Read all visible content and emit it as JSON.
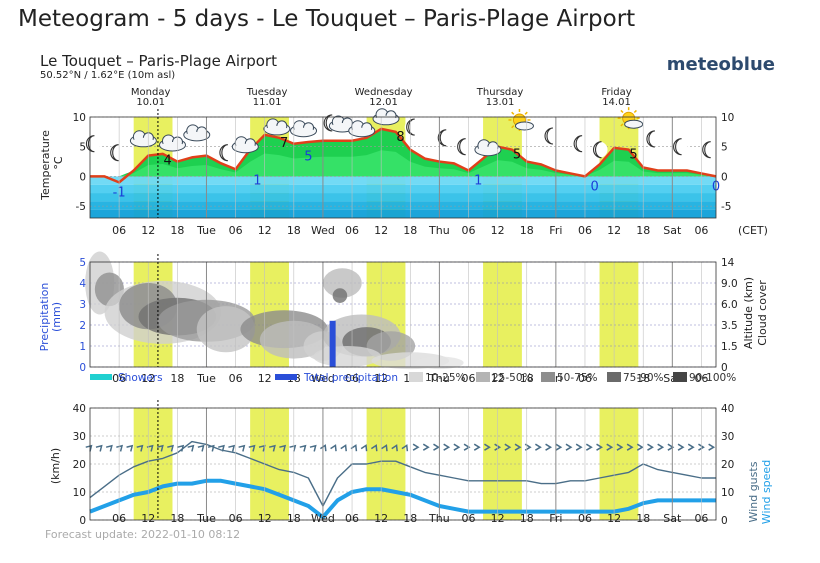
{
  "page": {
    "title": "Meteogram - 5 days - Le Touquet – Paris-Plage Airport"
  },
  "header": {
    "location": "Le Touquet – Paris-Plage Airport",
    "coords": "50.52°N / 1.62°E (10m asl)",
    "brand": "meteoblue",
    "timezone": "(CET)",
    "days": [
      {
        "name": "Monday",
        "date": "10.01"
      },
      {
        "name": "Tuesday",
        "date": "11.01"
      },
      {
        "name": "Wednesday",
        "date": "12.01"
      },
      {
        "name": "Thursday",
        "date": "13.01"
      },
      {
        "name": "Friday",
        "date": "14.01"
      }
    ]
  },
  "x_axis": {
    "tick_labels": [
      "06",
      "12",
      "18",
      "Tue",
      "06",
      "12",
      "18",
      "Wed",
      "06",
      "12",
      "18",
      "Thu",
      "06",
      "12",
      "18",
      "Fri",
      "06",
      "12",
      "18",
      "Sat",
      "06"
    ]
  },
  "footer": {
    "forecast_update": "Forecast update: 2022-01-10 08:12"
  },
  "colors": {
    "daylight": "#e8f060",
    "temperature_line": "#e0401a",
    "warm_fill": "#1ed050",
    "cold_fill": "#30c0e8",
    "precip_bar": "#2a4ed8",
    "showers": "#20d0d0",
    "gusts": "#4a6e88",
    "wind_speed": "#22a0e8",
    "now_line": "#000000"
  },
  "chart_data": [
    {
      "type": "area",
      "title": "",
      "ylabel": "Temperature °C",
      "ylim": [
        -5,
        10
      ],
      "yticks": [
        "10",
        "5",
        "0",
        "-5"
      ],
      "x_unit": "hours since Monday 00:00 (CET)",
      "x": [
        0,
        3,
        6,
        9,
        12,
        15,
        18,
        21,
        24,
        27,
        30,
        33,
        36,
        39,
        42,
        45,
        48,
        51,
        54,
        57,
        60,
        63,
        66,
        69,
        72,
        75,
        78,
        81,
        84,
        87,
        90,
        93,
        96,
        99,
        102,
        105,
        108,
        111,
        114,
        117,
        120,
        123,
        126,
        129
      ],
      "values": [
        0,
        0,
        -1,
        1,
        3.5,
        3.8,
        2.5,
        3.2,
        3.5,
        2.2,
        1.2,
        4.5,
        7,
        6.5,
        5.5,
        5.8,
        6,
        6,
        6,
        6.5,
        8,
        7.5,
        4.5,
        3,
        2.5,
        2.2,
        1,
        3,
        5,
        4.5,
        2.5,
        2,
        1,
        0.5,
        0,
        2,
        4.8,
        4.5,
        1.5,
        1,
        1,
        1,
        0.5,
        0
      ],
      "labels": [
        {
          "text": "-1",
          "x": 6,
          "y": -1,
          "color": "blue"
        },
        {
          "text": "4",
          "x": 16,
          "y": 4,
          "color": "black"
        },
        {
          "text": "1",
          "x": 34.5,
          "y": 1,
          "color": "blue"
        },
        {
          "text": "7",
          "x": 40,
          "y": 7,
          "color": "black"
        },
        {
          "text": "5",
          "x": 45,
          "y": 5,
          "color": "blue"
        },
        {
          "text": "8",
          "x": 64,
          "y": 8,
          "color": "black"
        },
        {
          "text": "1",
          "x": 80,
          "y": 1,
          "color": "blue"
        },
        {
          "text": "5",
          "x": 88,
          "y": 5,
          "color": "black"
        },
        {
          "text": "0",
          "x": 104,
          "y": 0,
          "color": "blue"
        },
        {
          "text": "5",
          "x": 112,
          "y": 5,
          "color": "black"
        },
        {
          "text": "0",
          "x": 129,
          "y": 0,
          "color": "blue"
        }
      ]
    },
    {
      "type": "bar",
      "title": "",
      "ylabel": "Precipitation (mm)",
      "ylabel_right": "Altitude (km) Cloud cover",
      "ylim": [
        0,
        5
      ],
      "yticks": [
        "5",
        "4",
        "3",
        "2",
        "1",
        "0"
      ],
      "yticks_right": [
        "14",
        "9.0",
        "6.0",
        "3.5",
        "1.5",
        "0"
      ],
      "legend": [
        "Showers",
        "Total precipitation",
        "10-25%",
        "25-50%",
        "50-75%",
        "75-90%",
        "90-100%"
      ],
      "x_unit": "hours since Monday 00:00 (CET)",
      "series": [
        {
          "name": "Total precipitation",
          "x": [
            50
          ],
          "values": [
            2.2
          ]
        }
      ]
    },
    {
      "type": "line",
      "title": "",
      "ylabel": "(km/h)",
      "ylabel_right": "Wind gusts Wind speed",
      "ylim": [
        0,
        40
      ],
      "yticks": [
        "40",
        "30",
        "20",
        "10",
        "0"
      ],
      "x_unit": "hours since Monday 00:00 (CET)",
      "x": [
        0,
        3,
        6,
        9,
        12,
        15,
        18,
        21,
        24,
        27,
        30,
        33,
        36,
        39,
        42,
        45,
        48,
        51,
        54,
        57,
        60,
        63,
        66,
        69,
        72,
        75,
        78,
        81,
        84,
        87,
        90,
        93,
        96,
        99,
        102,
        105,
        108,
        111,
        114,
        117,
        120,
        123,
        126,
        129
      ],
      "series": [
        {
          "name": "Wind gusts",
          "values": [
            8,
            12,
            16,
            19,
            21,
            22,
            24,
            28,
            27,
            25,
            24,
            22,
            20,
            18,
            17,
            15,
            5,
            15,
            20,
            20,
            21,
            21,
            19,
            17,
            16,
            15,
            14,
            14,
            14,
            14,
            14,
            13,
            13,
            14,
            14,
            15,
            16,
            17,
            20,
            18,
            17,
            16,
            15,
            15
          ]
        },
        {
          "name": "Wind speed",
          "values": [
            3,
            5,
            7,
            9,
            10,
            12,
            13,
            13,
            14,
            14,
            13,
            12,
            11,
            9,
            7,
            5,
            1,
            7,
            10,
            11,
            11,
            10,
            9,
            7,
            5,
            4,
            3,
            3,
            3,
            3,
            3,
            3,
            3,
            3,
            3,
            3,
            3,
            4,
            6,
            7,
            7,
            7,
            7,
            7
          ]
        }
      ]
    }
  ]
}
